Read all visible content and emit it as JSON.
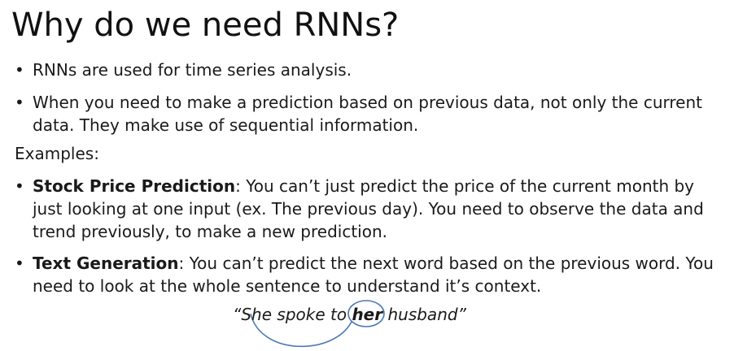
{
  "slide": {
    "title": "Why do we need RNNs?",
    "bullets": [
      {
        "text": "RNNs are used for time series analysis."
      },
      {
        "text": "When you need to make a prediction based on previous data, not only the current data. They make use of sequential information."
      }
    ],
    "examples_label": "Examples:",
    "example_bullets": [
      {
        "heading": "Stock Price Prediction",
        "text": ": You can’t just predict the price of the current month by just looking at one input (ex. The previous day). You need to observe the data and trend previously, to make a new prediction."
      },
      {
        "heading": "Text Generation",
        "text": ": You can’t predict the next word based on the previous word. You need to look at the whole sentence to understand it’s context."
      }
    ],
    "quote": {
      "open": "“She spoke to ",
      "highlight": "her",
      "close": " husband”"
    }
  },
  "colors": {
    "arc": "#4a78b5"
  }
}
